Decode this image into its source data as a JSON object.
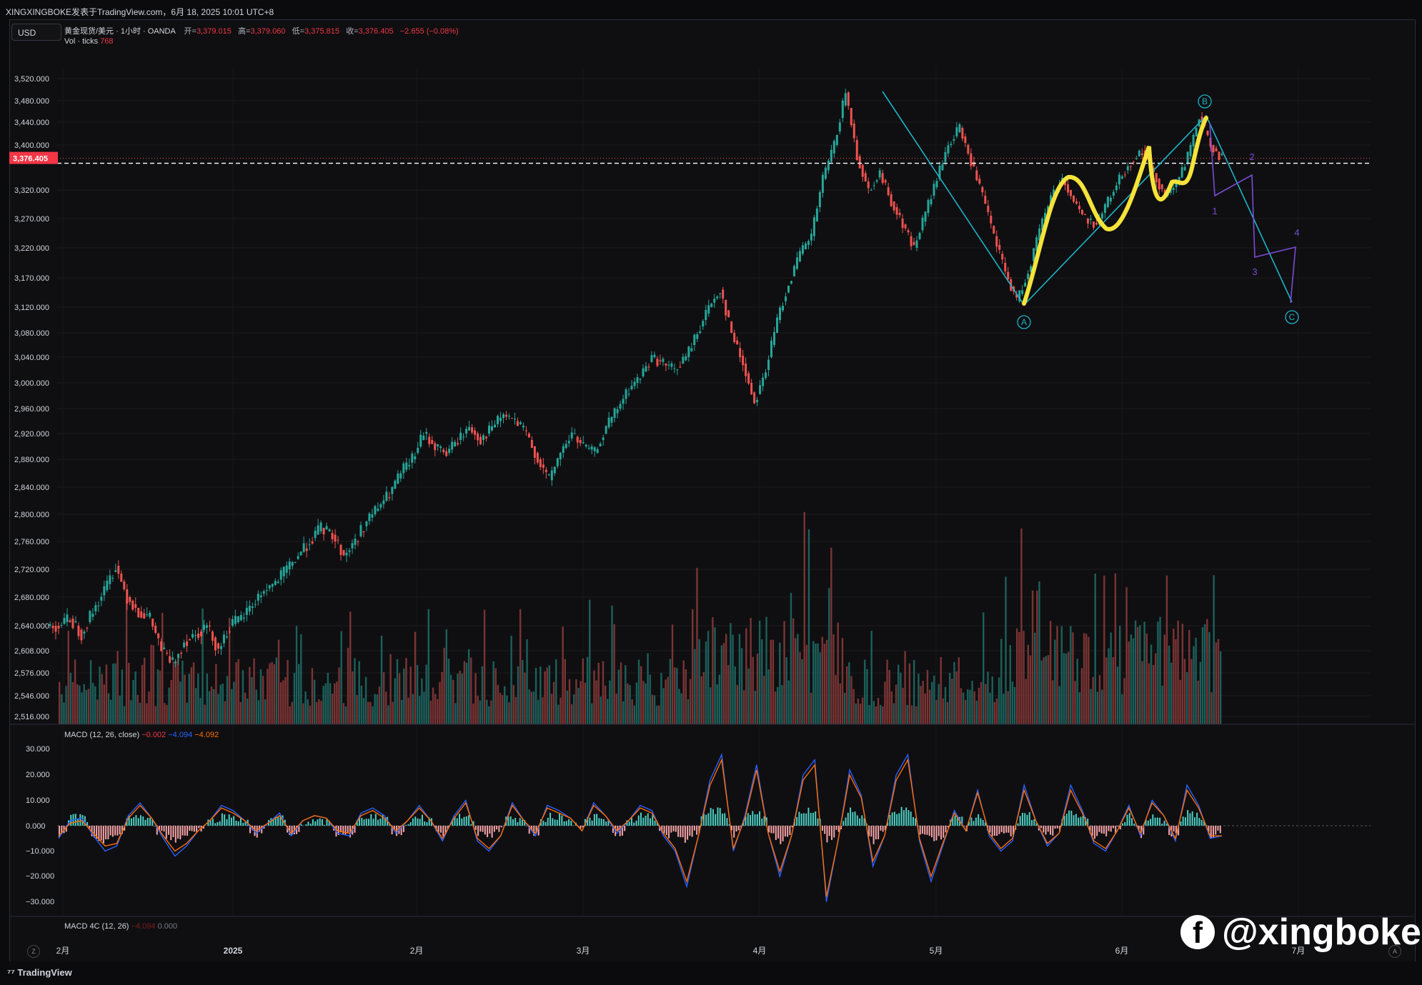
{
  "header": {
    "publisher": "XINGXINGBOKE发表于TradingView.com，6月 18, 2025 10:01 UTC+8"
  },
  "currency_button": "USD",
  "symbol_info": {
    "name": "黄金现货/美元 · 1小时 · OANDA",
    "open_label": "开=",
    "open": "3,379.015",
    "high_label": "高=",
    "high": "3,379.060",
    "low_label": "低=",
    "low": "3,375.815",
    "close_label": "收=",
    "close": "3,376.405",
    "change": "−2.655 (−0.08%)"
  },
  "volume_info": {
    "label": "Vol · ticks",
    "value": "768"
  },
  "price_tag": "3,376.405",
  "macd_info": {
    "label": "MACD (12, 26, close)",
    "hist": "−0.002",
    "macd": "−4.094",
    "signal": "−4.092"
  },
  "macd4c_info": {
    "label": "MACD 4C (12, 26)",
    "v1": "−4.094",
    "v2": "0.000"
  },
  "watermark": "@xingboke",
  "tv_brand": "TradingView",
  "colors": {
    "up": "#26a69a",
    "down": "#ef5350",
    "wave": "#1fb2c8",
    "sub_wave": "#7b4bd6",
    "highlight": "#f5e33a",
    "macd": "#2962ff",
    "signal": "#ff6d00"
  },
  "chart_data": [
    {
      "type": "line",
      "title": "黄金现货/美元 · 1小时 · OANDA",
      "x_tick_labels": [
        "2月",
        "2025",
        "2月",
        "3月",
        "4月",
        "5月",
        "6月",
        "7月"
      ],
      "y_tick_labels": [
        "3,520.000",
        "3,480.000",
        "3,440.000",
        "3,400.000",
        "3,320.000",
        "3,270.000",
        "3,220.000",
        "3,170.000",
        "3,120.000",
        "3,080.000",
        "3,040.000",
        "3,000.000",
        "2,960.000",
        "2,920.000",
        "2,880.000",
        "2,840.000",
        "2,800.000",
        "2,760.000",
        "2,720.000",
        "2,680.000",
        "2,640.000",
        "2,608.000",
        "2,576.000",
        "2,546.000",
        "2,516.000"
      ],
      "ylim": [
        2516,
        3540
      ],
      "series": [
        {
          "values": [
            2640,
            2650,
            2630,
            2660,
            2690,
            2725,
            2680,
            2660,
            2650,
            2610,
            2590,
            2620,
            2630,
            2640,
            2610,
            2640,
            2650,
            2670,
            2690,
            2700,
            2720,
            2740,
            2760,
            2780,
            2770,
            2740,
            2760,
            2790,
            2810,
            2830,
            2860,
            2880,
            2920,
            2900,
            2890,
            2910,
            2930,
            2910,
            2930,
            2950,
            2940,
            2920,
            2880,
            2850,
            2890,
            2920,
            2900,
            2890,
            2930,
            2960,
            2990,
            3010,
            3040,
            3030,
            3020,
            3040,
            3080,
            3120,
            3150,
            3080,
            3030,
            2970,
            3020,
            3100,
            3160,
            3210,
            3240,
            3340,
            3400,
            3495,
            3380,
            3320,
            3350,
            3300,
            3260,
            3220,
            3280,
            3340,
            3400,
            3430,
            3370,
            3310,
            3240,
            3180,
            3130,
            3180,
            3250,
            3310,
            3340,
            3300,
            3270,
            3260,
            3300,
            3340,
            3370,
            3390,
            3350,
            3310,
            3330,
            3380,
            3450,
            3400,
            3376
          ]
        }
      ],
      "annotations": {
        "wave_labels": [
          "A",
          "B",
          "C"
        ],
        "sub_wave_labels": [
          "1",
          "2",
          "3",
          "4"
        ]
      }
    },
    {
      "type": "bar",
      "title": "MACD (12, 26, close)",
      "y_tick_labels": [
        "30.000",
        "20.000",
        "10.000",
        "0.000",
        "−10.000",
        "−20.000",
        "−30.000"
      ],
      "ylim": [
        -34,
        34
      ],
      "series": [
        {
          "name": "MACD",
          "values": [
            -5,
            2,
            3,
            -4,
            -10,
            -8,
            4,
            9,
            3,
            -5,
            -12,
            -8,
            -2,
            2,
            8,
            6,
            2,
            -3,
            1,
            5,
            -4,
            2,
            4,
            3,
            -3,
            -4,
            5,
            7,
            4,
            -3,
            2,
            8,
            2,
            -6,
            4,
            10,
            -6,
            -10,
            -4,
            9,
            2,
            -4,
            8,
            6,
            3,
            -2,
            9,
            4,
            -3,
            2,
            8,
            6,
            -4,
            -10,
            -24,
            -4,
            18,
            28,
            -10,
            4,
            24,
            -3,
            -20,
            -4,
            20,
            26,
            -30,
            -6,
            22,
            12,
            -16,
            -4,
            20,
            28,
            -6,
            -22,
            -8,
            6,
            -2,
            14,
            -4,
            -10,
            -6,
            16,
            2,
            -8,
            -3,
            16,
            6,
            -7,
            -10,
            -2,
            8,
            -4,
            10,
            4,
            -6,
            16,
            8,
            -5,
            -4
          ]
        },
        {
          "name": "Signal",
          "values": [
            -4,
            1,
            2,
            -3,
            -8,
            -7,
            3,
            8,
            3,
            -4,
            -10,
            -7,
            -2,
            2,
            7,
            5,
            2,
            -2,
            1,
            4,
            -3,
            2,
            4,
            3,
            -2,
            -3,
            4,
            6,
            3,
            -2,
            2,
            7,
            2,
            -5,
            3,
            9,
            -5,
            -9,
            -4,
            8,
            2,
            -3,
            7,
            5,
            3,
            -2,
            8,
            4,
            -2,
            2,
            7,
            5,
            -3,
            -9,
            -22,
            -4,
            16,
            26,
            -9,
            3,
            22,
            -3,
            -18,
            -4,
            18,
            24,
            -28,
            -6,
            20,
            11,
            -14,
            -4,
            18,
            26,
            -5,
            -20,
            -7,
            5,
            -2,
            13,
            -3,
            -9,
            -5,
            14,
            2,
            -7,
            -3,
            14,
            5,
            -6,
            -9,
            -2,
            7,
            -3,
            9,
            4,
            -5,
            14,
            7,
            -4,
            -4
          ]
        }
      ]
    }
  ]
}
